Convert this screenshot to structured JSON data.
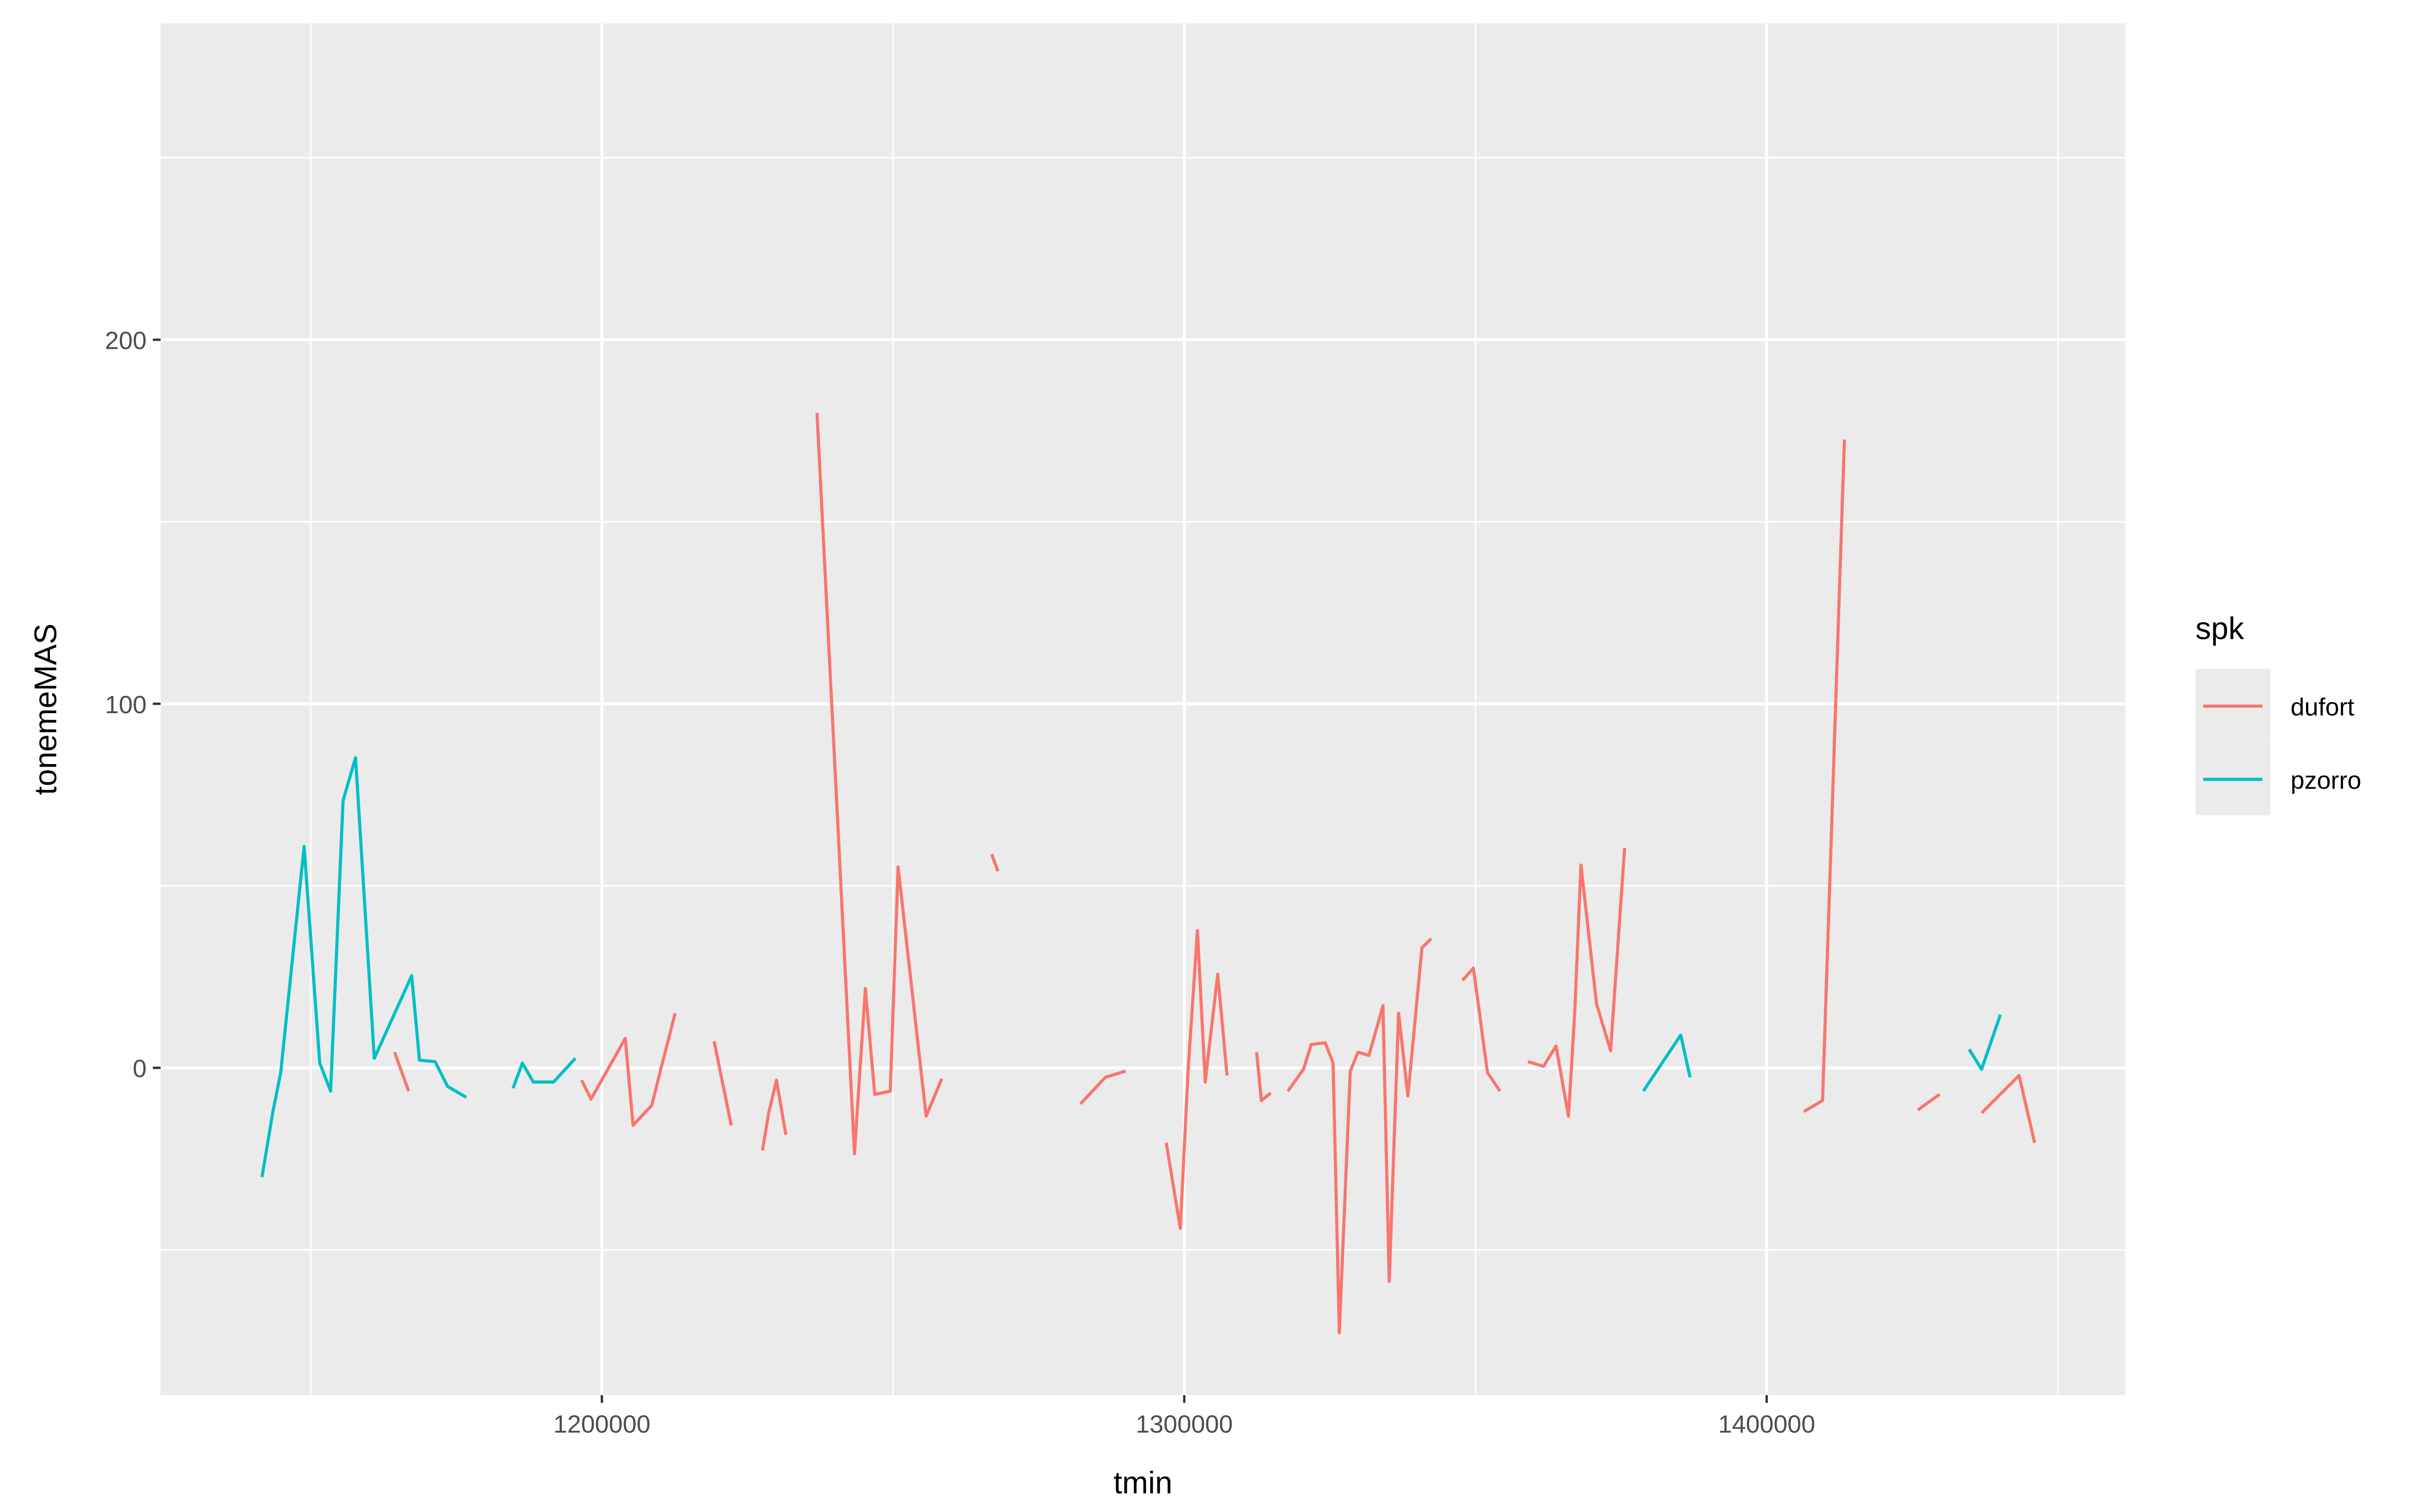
{
  "chart_data": {
    "type": "line",
    "title": "",
    "xlabel": "tmin",
    "ylabel": "tonemeMAS",
    "xlim": [
      1124230,
      1461580
    ],
    "ylim": [
      -89.9,
      286.9
    ],
    "x_ticks": [
      1200000,
      1300000,
      1400000
    ],
    "x_tick_labels": [
      "1200000",
      "1300000",
      "1400000"
    ],
    "x_minor": [
      1150000,
      1250000,
      1350000,
      1450000
    ],
    "y_ticks": [
      0,
      100,
      200
    ],
    "y_tick_labels": [
      "0",
      "100",
      "200"
    ],
    "y_minor": [
      -50,
      50,
      150,
      250
    ],
    "grid": true,
    "legend": {
      "title": "spk",
      "placement": "right"
    },
    "series": [
      {
        "name": "dufort",
        "color": "#F8766D",
        "segments": [
          [
            [
              1164400,
              4.3
            ],
            [
              1166810,
              -6.4
            ]
          ],
          [
            [
              1196520,
              -3.4
            ],
            [
              1198130,
              -8.6
            ],
            [
              1204020,
              8.1
            ],
            [
              1205350,
              -15.8
            ],
            [
              1208570,
              -10.3
            ],
            [
              1210170,
              0
            ],
            [
              1212580,
              15.0
            ]
          ],
          [
            [
              1219270,
              7.3
            ],
            [
              1222210,
              -15.8
            ]
          ],
          [
            [
              1227570,
              -22.7
            ],
            [
              1228640,
              -12.4
            ],
            [
              1229980,
              -3.4
            ],
            [
              1231590,
              -18.4
            ]
          ],
          [
            [
              1236940,
              179.9
            ],
            [
              1243370,
              -23.6
            ],
            [
              1245240,
              21.8
            ],
            [
              1246850,
              -7.3
            ],
            [
              1249520,
              -6.4
            ],
            [
              1250860,
              55.2
            ],
            [
              1255680,
              -13.3
            ],
            [
              1258360,
              -3.0
            ]
          ],
          [
            [
              1266930,
              58.7
            ],
            [
              1268000,
              54.0
            ]
          ],
          [
            [
              1282180,
              -9.9
            ],
            [
              1286460,
              -2.6
            ],
            [
              1289940,
              -0.9
            ]
          ],
          [
            [
              1296910,
              -20.6
            ],
            [
              1299320,
              -44.1
            ],
            [
              1300650,
              -0.9
            ],
            [
              1302260,
              37.7
            ],
            [
              1303600,
              -3.9
            ],
            [
              1305740,
              25.7
            ],
            [
              1307350,
              -2.1
            ]
          ],
          [
            [
              1312430,
              4.3
            ],
            [
              1313230,
              -9.0
            ],
            [
              1314840,
              -6.9
            ]
          ],
          [
            [
              1317790,
              -6.4
            ],
            [
              1320470,
              -0.4
            ],
            [
              1321800,
              6.4
            ],
            [
              1324210,
              6.9
            ],
            [
              1325550,
              1.3
            ],
            [
              1326620,
              -72.8
            ],
            [
              1328500,
              -0.9
            ],
            [
              1329840,
              4.3
            ],
            [
              1331710,
              3.4
            ],
            [
              1334120,
              17.1
            ],
            [
              1335190,
              -58.7
            ],
            [
              1336800,
              15.0
            ],
            [
              1338400,
              -7.7
            ],
            [
              1340810,
              33.0
            ],
            [
              1342420,
              35.5
            ]
          ],
          [
            [
              1347770,
              24.0
            ],
            [
              1349650,
              27.4
            ],
            [
              1352060,
              -1.3
            ],
            [
              1354200,
              -6.4
            ]
          ],
          [
            [
              1359010,
              1.7
            ],
            [
              1361690,
              0.4
            ],
            [
              1363830,
              6.0
            ],
            [
              1365970,
              -13.3
            ],
            [
              1367040,
              15.0
            ],
            [
              1368110,
              55.7
            ],
            [
              1370790,
              17.6
            ],
            [
              1373200,
              4.7
            ],
            [
              1375610,
              60.4
            ]
          ],
          [
            [
              1406390,
              -12.0
            ],
            [
              1409600,
              -9.0
            ],
            [
              1413350,
              172.6
            ]
          ],
          [
            [
              1425940,
              -11.6
            ],
            [
              1429690,
              -7.3
            ]
          ],
          [
            [
              1436910,
              -12.4
            ],
            [
              1443340,
              -2.1
            ],
            [
              1446010,
              -20.6
            ]
          ]
        ]
      },
      {
        "name": "pzorro",
        "color": "#00BFC4",
        "segments": [
          [
            [
              1141640,
              -30.0
            ],
            [
              1143515,
              -12.0
            ],
            [
              1144855,
              -1.3
            ],
            [
              1148870,
              60.8
            ],
            [
              1151550,
              1.3
            ],
            [
              1153420,
              -6.4
            ],
            [
              1155560,
              73.4
            ],
            [
              1157700,
              85.2
            ],
            [
              1160920,
              2.6
            ],
            [
              1167340,
              25.3
            ],
            [
              1168680,
              2.1
            ],
            [
              1171360,
              1.7
            ],
            [
              1173500,
              -5.1
            ],
            [
              1176710,
              -8.1
            ]
          ],
          [
            [
              1184740,
              -5.6
            ],
            [
              1186350,
              1.3
            ],
            [
              1188220,
              -3.9
            ],
            [
              1191700,
              -3.9
            ],
            [
              1195450,
              2.6
            ]
          ],
          [
            [
              1378820,
              -6.4
            ],
            [
              1385250,
              9.0
            ],
            [
              1386850,
              -2.6
            ]
          ],
          [
            [
              1434770,
              5.1
            ],
            [
              1436910,
              -0.4
            ],
            [
              1440130,
              14.6
            ]
          ]
        ]
      }
    ]
  }
}
